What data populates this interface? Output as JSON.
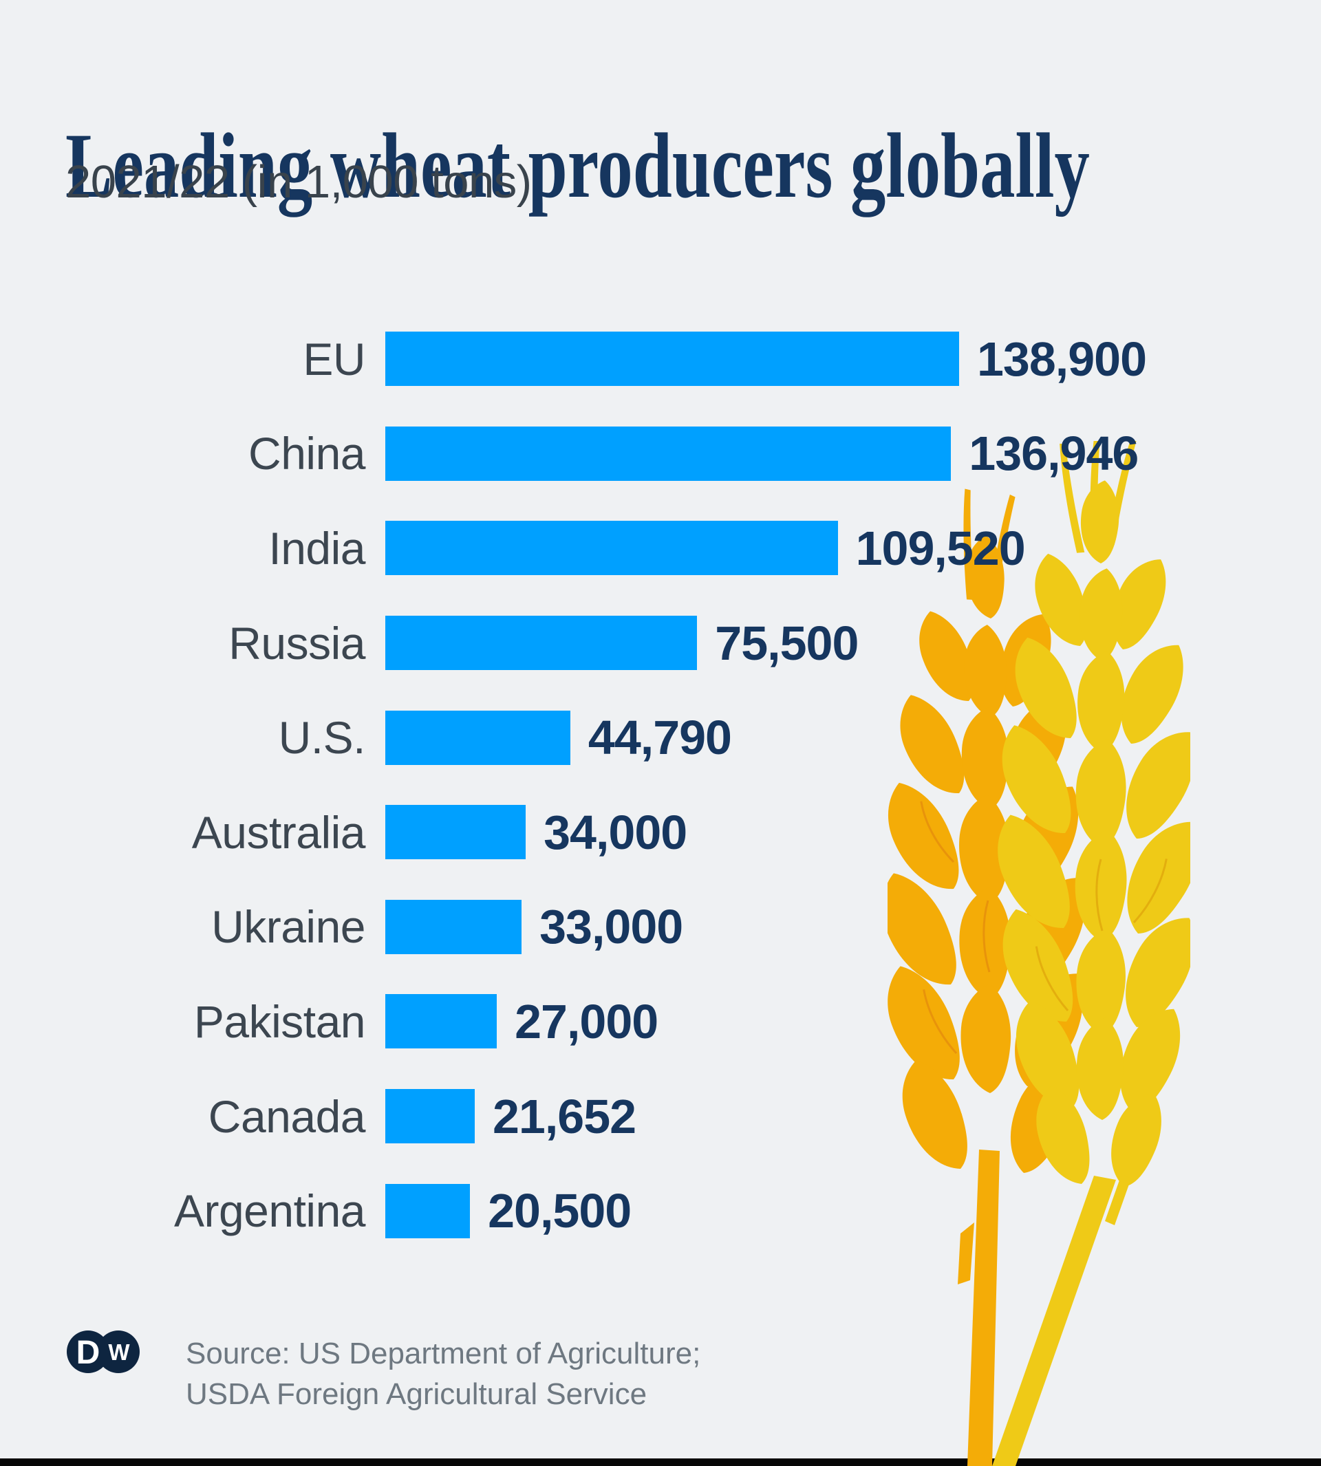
{
  "title": "Leading wheat producers globally",
  "subtitle": "2021/22 (in 1,000 tons)",
  "source": {
    "line1": "Source: US Department of Agriculture;",
    "line2": "USDA Foreign Agricultural Service"
  },
  "logo": {
    "left_letter": "D",
    "right_letter": "W"
  },
  "colors": {
    "background": "#EFF1F3",
    "bar": "#00A0FF",
    "title": "#16365F",
    "subtitle": "#39434C",
    "label": "#3C4650",
    "value": "#16365F",
    "source": "#6E7881",
    "logo": "#0E2540",
    "wheat_dark": "#F4AC07",
    "wheat_light": "#EFCA17",
    "bottom_bar": "#060606"
  },
  "chart_data": {
    "type": "bar",
    "orientation": "horizontal",
    "title": "Leading wheat producers globally",
    "subtitle": "2021/22 (in 1,000 tons)",
    "categories": [
      "EU",
      "China",
      "India",
      "Russia",
      "U.S.",
      "Australia",
      "Ukraine",
      "Pakistan",
      "Canada",
      "Argentina"
    ],
    "values": [
      138900,
      136946,
      109520,
      75500,
      44790,
      34000,
      33000,
      27000,
      21652,
      20500
    ],
    "value_labels": [
      "138,900",
      "136,946",
      "109,520",
      "75,500",
      "44,790",
      "34,000",
      "33,000",
      "27,000",
      "21,652",
      "20,500"
    ],
    "xlim": [
      0,
      138900
    ],
    "grid": false,
    "legend": false,
    "bar_color": "#00A0FF",
    "value_label_position": "right-of-bar"
  }
}
